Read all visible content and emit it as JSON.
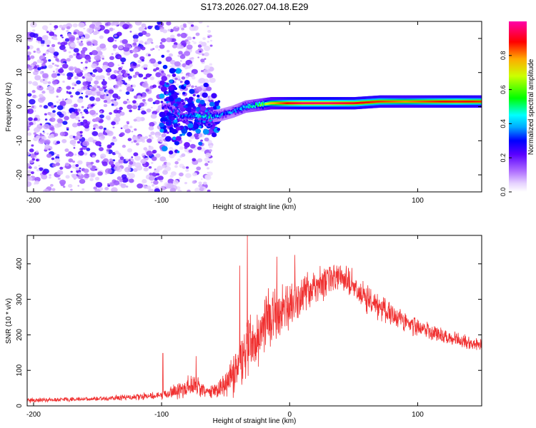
{
  "title": "S173.2026.027.04.18.E29",
  "chart_data": [
    {
      "type": "heatmap",
      "xlabel": "Height of straight line (km)",
      "ylabel": "Frequency (Hz)",
      "xlim": [
        -205,
        150
      ],
      "ylim": [
        -25,
        25
      ],
      "xticks": [
        -200,
        -100,
        0,
        100
      ],
      "xtick_labels": [
        "-200",
        "-100",
        "0",
        "100"
      ],
      "yticks": [
        -20,
        -10,
        0,
        10,
        20
      ],
      "ytick_labels": [
        "-20",
        "-10",
        "0",
        "10",
        "20"
      ],
      "colorbar": {
        "label": "Normalized spectral amplitude",
        "range": [
          0,
          1
        ],
        "ticks": [
          0.0,
          0.2,
          0.4,
          0.6,
          0.8
        ],
        "tick_labels": [
          "0.0",
          "0.2",
          "0.4",
          "0.6",
          "0.8"
        ]
      },
      "ridge": {
        "x": [
          -95,
          -85,
          -75,
          -65,
          -55,
          -45,
          -35,
          -25,
          -15,
          -5,
          0,
          10,
          30,
          50,
          70,
          90,
          110,
          130,
          150
        ],
        "freq": [
          0,
          -3,
          -2.5,
          -3,
          -2.5,
          -1.5,
          0,
          0.5,
          1,
          1,
          1,
          1,
          1,
          1,
          1.5,
          1.5,
          1.5,
          1.5,
          1.5
        ],
        "amplitude": [
          0.25,
          0.35,
          0.4,
          0.45,
          0.35,
          0.35,
          0.45,
          0.55,
          0.75,
          0.85,
          0.9,
          0.95,
          0.95,
          0.9,
          0.85,
          0.8,
          0.85,
          0.9,
          0.85
        ]
      },
      "noise": {
        "x_range": [
          -205,
          -60
        ],
        "freq_range": [
          -25,
          25
        ],
        "amplitude_range": [
          0.05,
          0.3
        ]
      }
    },
    {
      "type": "line",
      "xlabel": "Height of straight line (km)",
      "ylabel": "SNR (10 * v/v)",
      "xlim": [
        -205,
        150
      ],
      "ylim": [
        0,
        480
      ],
      "xticks": [
        -200,
        -100,
        0,
        100
      ],
      "xtick_labels": [
        "-200",
        "-100",
        "0",
        "100"
      ],
      "yticks": [
        0,
        100,
        200,
        300,
        400
      ],
      "ytick_labels": [
        "0",
        "100",
        "200",
        "300",
        "400"
      ],
      "color": "#f03030",
      "envelope": {
        "x": [
          -205,
          -150,
          -120,
          -100,
          -85,
          -75,
          -65,
          -55,
          -45,
          -35,
          -25,
          -15,
          -5,
          5,
          20,
          35,
          45,
          60,
          80,
          100,
          120,
          150
        ],
        "mean": [
          15,
          20,
          25,
          30,
          45,
          60,
          40,
          45,
          90,
          150,
          200,
          250,
          270,
          300,
          335,
          360,
          355,
          300,
          255,
          220,
          195,
          170
        ],
        "spread": [
          8,
          8,
          10,
          15,
          30,
          35,
          20,
          30,
          80,
          120,
          100,
          100,
          80,
          70,
          60,
          50,
          50,
          45,
          35,
          30,
          25,
          20
        ]
      },
      "spikes": [
        {
          "x": -33,
          "y": 480
        },
        {
          "x": -39,
          "y": 395
        },
        {
          "x": -10,
          "y": 420
        },
        {
          "x": 4,
          "y": 425
        },
        {
          "x": -99,
          "y": 148
        },
        {
          "x": -73,
          "y": 140
        }
      ]
    }
  ]
}
